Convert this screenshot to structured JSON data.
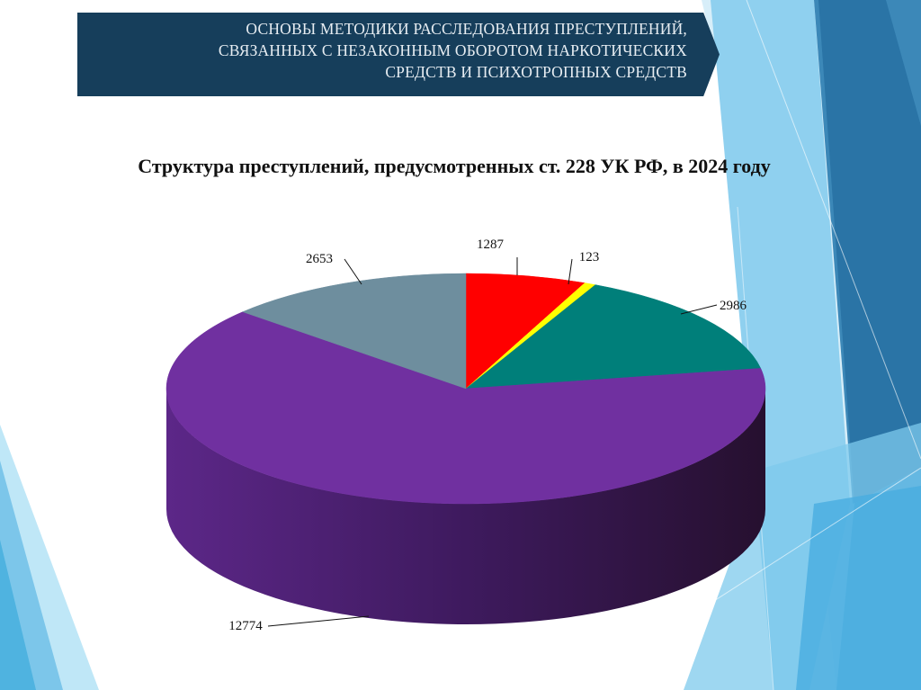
{
  "header": {
    "lines": [
      "ОСНОВЫ МЕТОДИКИ РАССЛЕДОВАНИЯ ПРЕСТУПЛЕНИЙ,",
      "СВЯЗАННЫХ С НЕЗАКОННЫМ ОБОРОТОМ НАРКОТИЧЕСКИХ",
      "СРЕДСТВ И ПСИХОТРОПНЫХ СРЕДСТВ"
    ]
  },
  "chart_data": {
    "type": "pie",
    "title": "Структура преступлений, предусмотренных ст. 228 УК РФ, в 2024 году",
    "series": [
      {
        "value": 1287,
        "color": "#ff0000"
      },
      {
        "value": 123,
        "color": "#ffff00"
      },
      {
        "value": 2986,
        "color": "#007f7a"
      },
      {
        "value": 12774,
        "color": "#7030a0"
      },
      {
        "value": 2653,
        "color": "#6e8e9e"
      }
    ],
    "data_labels": [
      "1287",
      "123",
      "2986",
      "12774",
      "2653"
    ],
    "start_angle": "12 o'clock, clockwise",
    "style": "3D"
  }
}
